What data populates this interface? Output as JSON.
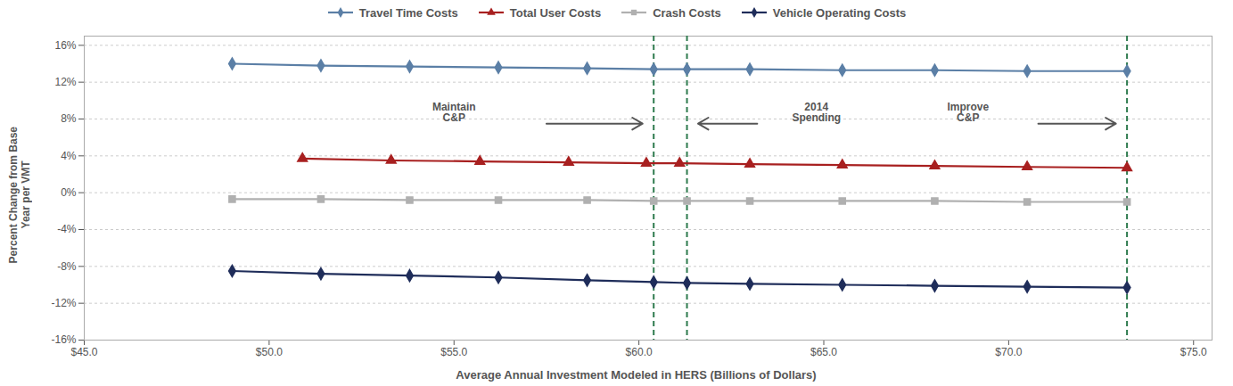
{
  "chart_data": {
    "type": "line",
    "xlabel": "Average Annual Investment Modeled in HERS (Billions of Dollars)",
    "ylabel": "Percent Change from Base\nYear per VMT",
    "series": [
      {
        "name": "Travel Time Costs",
        "color": "#5b7fa6",
        "marker": "diamond",
        "x": [
          49.0,
          51.4,
          53.8,
          56.2,
          58.6,
          60.4,
          61.3,
          63.0,
          65.5,
          68.0,
          70.5,
          73.2
        ],
        "values": [
          14.0,
          13.8,
          13.7,
          13.6,
          13.5,
          13.4,
          13.4,
          13.4,
          13.3,
          13.3,
          13.2,
          13.2
        ]
      },
      {
        "name": "Total User Costs",
        "color": "#a82020",
        "marker": "triangle",
        "x": [
          50.9,
          53.3,
          55.7,
          58.1,
          60.2,
          61.1,
          63.0,
          65.5,
          68.0,
          70.5,
          73.2
        ],
        "values": [
          3.7,
          3.5,
          3.4,
          3.3,
          3.2,
          3.2,
          3.1,
          3.0,
          2.9,
          2.8,
          2.7
        ]
      },
      {
        "name": "Crash Costs",
        "color": "#b0b0b0",
        "marker": "square",
        "x": [
          49.0,
          51.4,
          53.8,
          56.2,
          58.6,
          60.4,
          61.3,
          63.0,
          65.5,
          68.0,
          70.5,
          73.2
        ],
        "values": [
          -0.7,
          -0.7,
          -0.8,
          -0.8,
          -0.8,
          -0.9,
          -0.9,
          -0.9,
          -0.9,
          -0.9,
          -1.0,
          -1.0
        ]
      },
      {
        "name": "Vehicle Operating Costs",
        "color": "#1f2d5a",
        "marker": "diamond",
        "x": [
          49.0,
          51.4,
          53.8,
          56.2,
          58.6,
          60.4,
          61.3,
          63.0,
          65.5,
          68.0,
          70.5,
          73.2
        ],
        "values": [
          -8.5,
          -8.8,
          -9.0,
          -9.2,
          -9.5,
          -9.7,
          -9.8,
          -9.9,
          -10.0,
          -10.1,
          -10.2,
          -10.3
        ]
      }
    ],
    "xlim": [
      45.0,
      75.5
    ],
    "ylim": [
      -16,
      17
    ],
    "xticks": [
      {
        "value": 45.0,
        "label": "$45.0"
      },
      {
        "value": 50.0,
        "label": "$50.0"
      },
      {
        "value": 55.0,
        "label": "$55.0"
      },
      {
        "value": 60.0,
        "label": "$60.0"
      },
      {
        "value": 65.0,
        "label": "$65.0"
      },
      {
        "value": 70.0,
        "label": "$70.0"
      },
      {
        "value": 75.0,
        "label": "$75.0"
      }
    ],
    "yticks": [
      {
        "value": -16,
        "label": "-16%"
      },
      {
        "value": -12,
        "label": "-12%"
      },
      {
        "value": -8,
        "label": "-8%"
      },
      {
        "value": -4,
        "label": "-4%"
      },
      {
        "value": 0,
        "label": "0%"
      },
      {
        "value": 4,
        "label": "4%"
      },
      {
        "value": 8,
        "label": "8%"
      },
      {
        "value": 12,
        "label": "12%"
      },
      {
        "value": 16,
        "label": "16%"
      }
    ],
    "grid": "y",
    "legend": "top",
    "vlines": {
      "values": [
        60.4,
        61.3,
        73.2
      ],
      "color": "#2e7b4e",
      "line_style": "dashed"
    },
    "arrows": [
      {
        "x1": 57.5,
        "x2": 60.1,
        "y": 7.5,
        "color": "#555555"
      },
      {
        "x1": 63.2,
        "x2": 61.6,
        "y": 7.5,
        "color": "#555555"
      },
      {
        "x1": 70.8,
        "x2": 72.9,
        "y": 7.5,
        "color": "#555555"
      }
    ],
    "annotations": [
      {
        "text": "Maintain\nC&P",
        "x": 55.0,
        "y": 7.8,
        "color": "#555555"
      },
      {
        "text": "2014\nSpending",
        "x": 64.8,
        "y": 7.8,
        "color": "#555555"
      },
      {
        "text": "Improve\nC&P",
        "x": 68.9,
        "y": 7.8,
        "color": "#555555"
      }
    ]
  }
}
